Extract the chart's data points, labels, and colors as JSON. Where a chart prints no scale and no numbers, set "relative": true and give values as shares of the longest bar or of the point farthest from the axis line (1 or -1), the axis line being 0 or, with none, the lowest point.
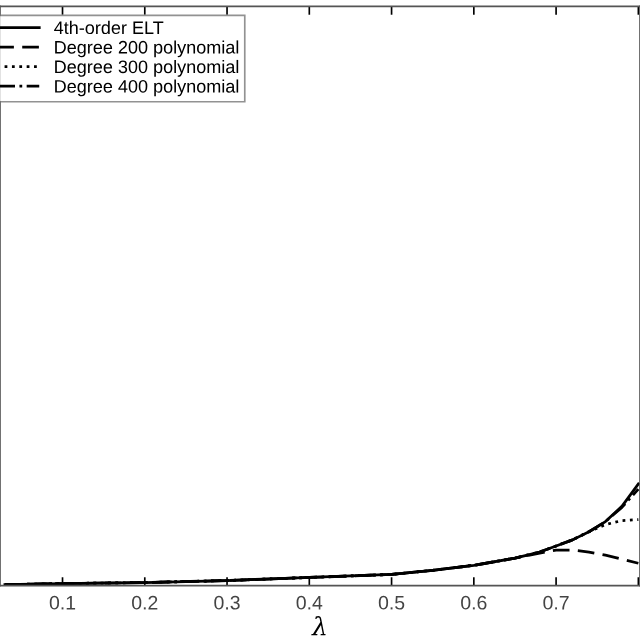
{
  "chart_data": {
    "type": "line",
    "relative": true,
    "xlabel": "λ",
    "xlim": [
      0.024,
      0.802
    ],
    "xticks": [
      0.1,
      0.2,
      0.3,
      0.4,
      0.5,
      0.6,
      0.7,
      {
        "value": 0.8,
        "label": null
      }
    ],
    "x": [
      0.03,
      0.1,
      0.2,
      0.3,
      0.4,
      0.5,
      0.55,
      0.6,
      0.65,
      0.68,
      0.7,
      0.72,
      0.74,
      0.76,
      0.78,
      0.8
    ],
    "legend": "top left",
    "grid": false,
    "series": [
      {
        "name": "4th-order ELT",
        "color": "#000000",
        "line_style": "solid",
        "values": [
          0.01,
          0.02,
          0.03,
          0.05,
          0.08,
          0.11,
          0.15,
          0.2,
          0.27,
          0.33,
          0.39,
          0.45,
          0.53,
          0.63,
          0.78,
          1.0
        ]
      },
      {
        "name": "Degree 200 polynomial",
        "color": "#000000",
        "line_style": "dashed",
        "values": [
          0.01,
          0.02,
          0.03,
          0.05,
          0.08,
          0.11,
          0.15,
          0.2,
          0.27,
          0.32,
          0.35,
          0.35,
          0.33,
          0.3,
          0.26,
          0.22
        ]
      },
      {
        "name": "Degree 300 polynomial",
        "color": "#000000",
        "line_style": "dotted",
        "values": [
          0.01,
          0.02,
          0.03,
          0.05,
          0.08,
          0.11,
          0.15,
          0.2,
          0.27,
          0.33,
          0.39,
          0.45,
          0.53,
          0.6,
          0.64,
          0.65
        ]
      },
      {
        "name": "Degree 400 polynomial",
        "color": "#000000",
        "line_style": "dashdot",
        "values": [
          0.01,
          0.02,
          0.03,
          0.05,
          0.08,
          0.11,
          0.15,
          0.2,
          0.27,
          0.33,
          0.39,
          0.45,
          0.53,
          0.63,
          0.77,
          0.95
        ]
      }
    ]
  }
}
